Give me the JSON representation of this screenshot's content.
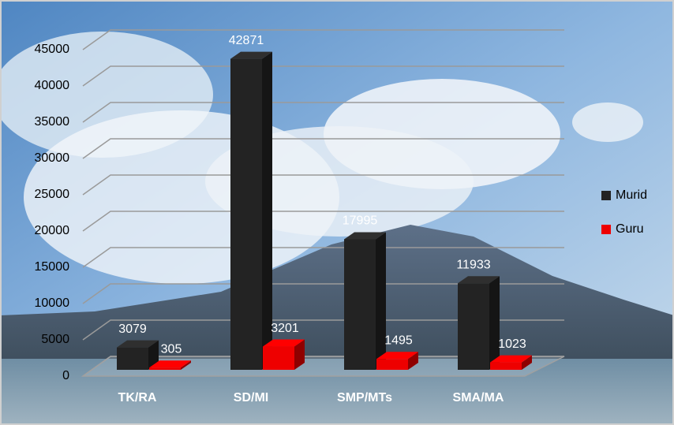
{
  "chart_data": {
    "type": "bar3d",
    "categories": [
      "TK/RA",
      "SD/MI",
      "SMP/MTs",
      "SMA/MA"
    ],
    "series": [
      {
        "name": "Murid",
        "color": "#232323",
        "values": [
          3079,
          42871,
          17995,
          11933
        ]
      },
      {
        "name": "Guru",
        "color": "#ee0000",
        "values": [
          305,
          3201,
          1495,
          1023
        ]
      }
    ],
    "ylim": [
      0,
      45000
    ],
    "yticks": [
      0,
      5000,
      10000,
      15000,
      20000,
      25000,
      30000,
      35000,
      40000,
      45000
    ],
    "grid": true,
    "legend": "right"
  }
}
